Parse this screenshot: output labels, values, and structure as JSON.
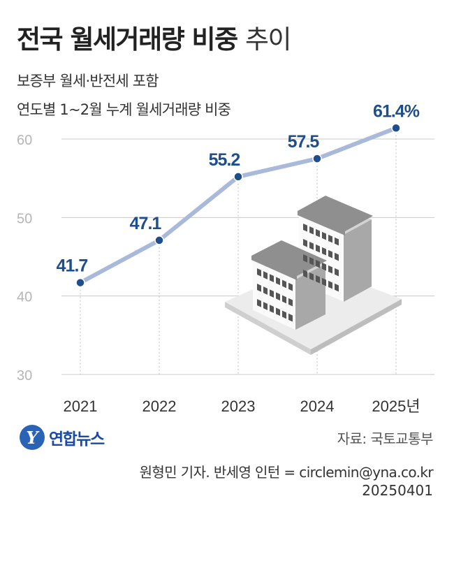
{
  "header": {
    "title_bold": "전국 월세거래량 비중",
    "title_light": "추이",
    "subtitle_1": "보증부 월세·반전세 포함",
    "subtitle_2": "연도별 1~2월 누계 월세거래량 비중"
  },
  "chart_data": {
    "type": "line",
    "categories": [
      "2021",
      "2022",
      "2023",
      "2024",
      "2025년"
    ],
    "values": [
      41.7,
      47.1,
      55.2,
      57.5,
      61.4
    ],
    "value_labels": [
      "41.7",
      "47.1",
      "55.2",
      "57.5",
      "61.4%"
    ],
    "yticks": [
      "30",
      "40",
      "50",
      "60"
    ],
    "ylim": [
      30,
      60
    ],
    "grid": true,
    "colors": {
      "line": "#a9b9da",
      "marker": "#1f4e8c",
      "label": "#1f4e8c",
      "grid": "#c8c8c8"
    },
    "decoration": "isometric-buildings-illustration"
  },
  "footer": {
    "logo_text": "연합뉴스",
    "logo_mark": "Y",
    "source": "자료: 국토교통부",
    "credit": "원형민 기자. 반세영 인턴 = circlemin@yna.co.kr",
    "date": "20250401"
  }
}
